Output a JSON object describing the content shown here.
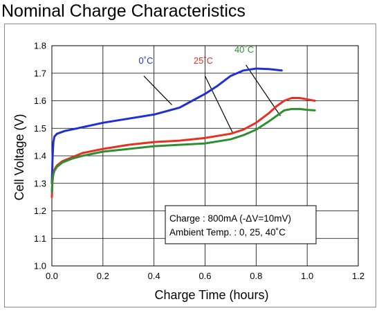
{
  "title": "Nominal Charge Characteristics",
  "chart_data": {
    "type": "line",
    "xlabel": "Charge Time (hours)",
    "ylabel": "Cell Voltage (V)",
    "xlim": [
      0.0,
      1.2
    ],
    "ylim": [
      1.0,
      1.8
    ],
    "x_ticks": [
      "0.0",
      "0.2",
      "0.4",
      "0.6",
      "0.8",
      "1.0",
      "1.2"
    ],
    "y_ticks": [
      "1.0",
      "1.1",
      "1.2",
      "1.3",
      "1.4",
      "1.5",
      "1.6",
      "1.7",
      "1.8"
    ],
    "grid": true,
    "series": [
      {
        "name": "0˚C",
        "color": "#1f2fd6",
        "x": [
          0.0,
          0.003,
          0.006,
          0.01,
          0.02,
          0.05,
          0.1,
          0.15,
          0.2,
          0.3,
          0.4,
          0.5,
          0.55,
          0.6,
          0.65,
          0.7,
          0.75,
          0.8,
          0.85,
          0.9
        ],
        "y": [
          1.3,
          1.4,
          1.45,
          1.47,
          1.48,
          1.49,
          1.5,
          1.51,
          1.52,
          1.535,
          1.55,
          1.575,
          1.6,
          1.625,
          1.655,
          1.69,
          1.71,
          1.717,
          1.715,
          1.71
        ]
      },
      {
        "name": "25˚C",
        "color": "#e8301e",
        "x": [
          0.0,
          0.002,
          0.005,
          0.01,
          0.02,
          0.04,
          0.08,
          0.12,
          0.2,
          0.3,
          0.4,
          0.5,
          0.6,
          0.7,
          0.75,
          0.8,
          0.85,
          0.88,
          0.91,
          0.94,
          0.97,
          1.0,
          1.03
        ],
        "y": [
          1.25,
          1.3,
          1.33,
          1.35,
          1.365,
          1.38,
          1.395,
          1.41,
          1.425,
          1.44,
          1.45,
          1.455,
          1.465,
          1.48,
          1.495,
          1.52,
          1.555,
          1.58,
          1.6,
          1.61,
          1.61,
          1.605,
          1.6
        ]
      },
      {
        "name": "40˚C",
        "color": "#2f8f2f",
        "x": [
          0.0,
          0.002,
          0.005,
          0.01,
          0.02,
          0.04,
          0.08,
          0.12,
          0.2,
          0.3,
          0.4,
          0.5,
          0.6,
          0.7,
          0.75,
          0.8,
          0.85,
          0.88,
          0.91,
          0.94,
          0.97,
          1.0,
          1.03
        ],
        "y": [
          1.27,
          1.31,
          1.33,
          1.345,
          1.36,
          1.375,
          1.39,
          1.4,
          1.415,
          1.425,
          1.435,
          1.44,
          1.445,
          1.46,
          1.475,
          1.495,
          1.525,
          1.545,
          1.565,
          1.57,
          1.57,
          1.567,
          1.565
        ]
      }
    ],
    "annotation": {
      "line1": "Charge : 800mA (-ΔV=10mV)",
      "line2": "Ambient Temp. : 0, 25, 40˚C"
    }
  }
}
